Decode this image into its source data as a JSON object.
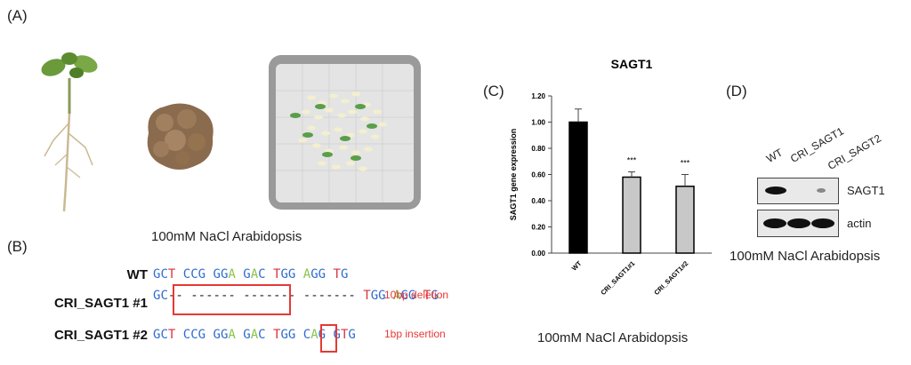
{
  "panels": {
    "a_label": "(A)",
    "b_label": "(B)",
    "c_label": "(C)",
    "d_label": "(D)"
  },
  "panel_b": {
    "caption": "100mM NaCl Arabidopsis",
    "rows": [
      {
        "name": "WT",
        "seq": "GCT CCG GGA GAC TGG AGG TG",
        "note": ""
      },
      {
        "name": "CRI_SAGT1 #1",
        "seq": "GC-- ------ ------- ------- TGG AGG TG",
        "note": "10bp deletion"
      },
      {
        "name": "CRI_SAGT1 #2",
        "seq": "GCT CCG GGA GAC TGG CAG GTG",
        "note": "1bp insertion"
      }
    ]
  },
  "panel_c": {
    "caption": "100mM NaCl Arabidopsis"
  },
  "panel_d": {
    "lanes": [
      "WT",
      "CRI_SAGT1",
      "CRI_SAGT2"
    ],
    "blots": [
      "SAGT1",
      "actin"
    ],
    "caption": "100mM NaCl Arabidopsis"
  },
  "chart_data": {
    "type": "bar",
    "title": "SAGT1",
    "xlabel": "",
    "ylabel": "SAGT1 gene expression",
    "categories": [
      "WT",
      "CRI_SAGT1#1",
      "CRI_SAGT1#2"
    ],
    "values": [
      1.0,
      0.58,
      0.51
    ],
    "errors": [
      0.1,
      0.04,
      0.09
    ],
    "significance": [
      "",
      "***",
      "***"
    ],
    "ylim": [
      0,
      1.2
    ],
    "yticks": [
      "0.00",
      "0.20",
      "0.40",
      "0.60",
      "0.80",
      "1.00",
      "1.20"
    ],
    "bar_colors": [
      "#000000",
      "#c8c8c8",
      "#c8c8c8"
    ]
  }
}
